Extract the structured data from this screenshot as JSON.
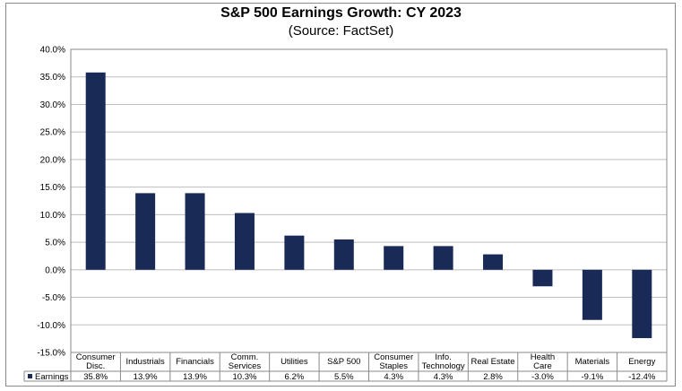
{
  "title": "S&P 500 Earnings Growth: CY 2023",
  "subtitle": "(Source: FactSet)",
  "chart_data": {
    "type": "bar",
    "categories": [
      [
        "Consumer",
        "Disc."
      ],
      [
        "Industrials"
      ],
      [
        "Financials"
      ],
      [
        "Comm.",
        "Services"
      ],
      [
        "Utilities"
      ],
      [
        "S&P 500"
      ],
      [
        "Consumer",
        "Staples"
      ],
      [
        "Info.",
        "Technology"
      ],
      [
        "Real Estate"
      ],
      [
        "Health",
        "Care"
      ],
      [
        "Materials"
      ],
      [
        "Energy"
      ]
    ],
    "series": [
      {
        "name": "Earnings",
        "values": [
          35.8,
          13.9,
          13.9,
          10.3,
          6.2,
          5.5,
          4.3,
          4.3,
          2.8,
          -3.0,
          -9.1,
          -12.4
        ],
        "labels": [
          "35.8%",
          "13.9%",
          "13.9%",
          "10.3%",
          "6.2%",
          "5.5%",
          "4.3%",
          "4.3%",
          "2.8%",
          "-3.0%",
          "-9.1%",
          "-12.4%"
        ]
      }
    ],
    "ylim": [
      -15,
      40
    ],
    "yticks": [
      40,
      35,
      30,
      25,
      20,
      15,
      10,
      5,
      0,
      -5,
      -10,
      -15
    ],
    "ytick_labels": [
      "40.0%",
      "35.0%",
      "30.0%",
      "25.0%",
      "20.0%",
      "15.0%",
      "10.0%",
      "5.0%",
      "0.0%",
      "-5.0%",
      "-10.0%",
      "-15.0%"
    ],
    "bar_color": "#1a2a56",
    "grid": true,
    "legend": "data-table-row"
  }
}
